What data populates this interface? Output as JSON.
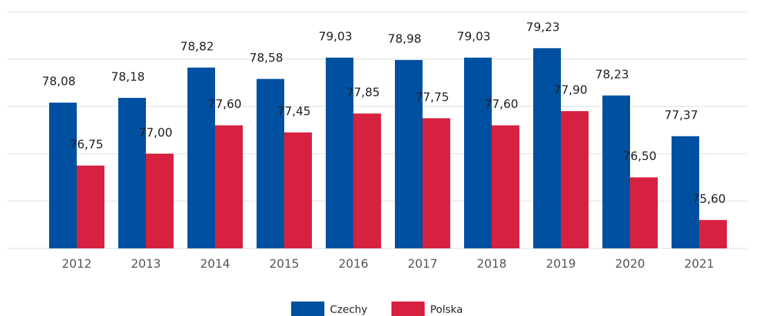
{
  "chart_data": {
    "type": "bar",
    "categories": [
      "2012",
      "2013",
      "2014",
      "2015",
      "2016",
      "2017",
      "2018",
      "2019",
      "2020",
      "2021"
    ],
    "series": [
      {
        "name": "Czechy",
        "color": "#0050a2",
        "values": [
          78.08,
          78.18,
          78.82,
          78.58,
          79.03,
          78.98,
          79.03,
          79.23,
          78.23,
          77.37
        ],
        "value_labels": [
          "78,08",
          "78,18",
          "78,82",
          "78,58",
          "79,03",
          "78,98",
          "79,03",
          "79,23",
          "78,23",
          "77,37"
        ]
      },
      {
        "name": "Polska",
        "color": "#d62240",
        "values": [
          76.75,
          77.0,
          77.6,
          77.45,
          77.85,
          77.75,
          77.6,
          77.9,
          76.5,
          75.6
        ],
        "value_labels": [
          "76,75",
          "77,00",
          "77,60",
          "77,45",
          "77,85",
          "77,75",
          "77,60",
          "77,90",
          "76,50",
          "75,60"
        ]
      }
    ],
    "ylim": [
      75,
      80
    ],
    "yticks": [
      75,
      76,
      77,
      78,
      79,
      80
    ],
    "grid": true,
    "legend": "bottom"
  }
}
